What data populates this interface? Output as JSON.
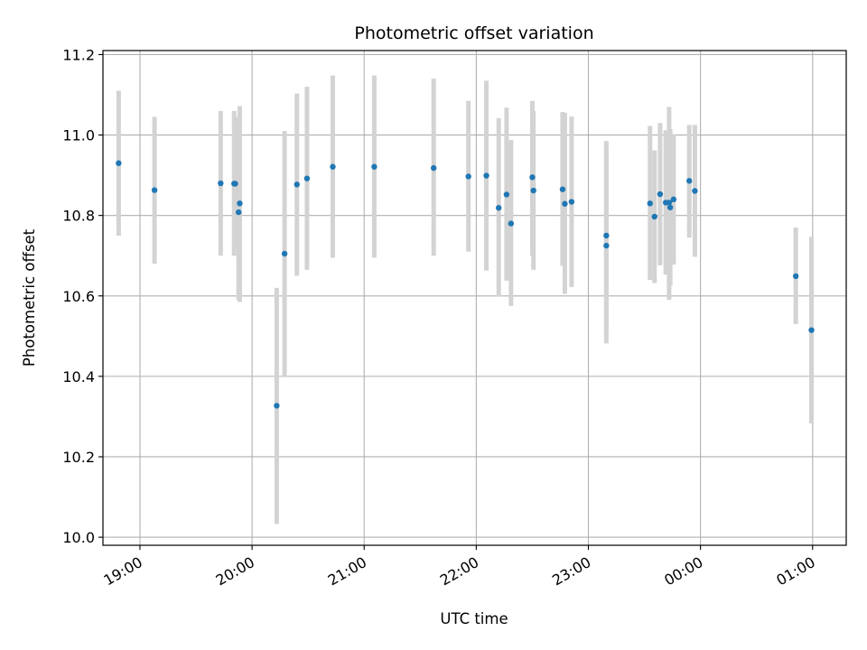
{
  "chart_data": {
    "type": "scatter",
    "title": "Photometric offset variation",
    "xlabel": "UTC time",
    "ylabel": "Photometric offset",
    "x_unit": "hours UTC, continuing past midnight (24.5 = 00:30)",
    "xlim": [
      18.67,
      25.3
    ],
    "ylim": [
      9.98,
      11.21
    ],
    "grid": true,
    "x_ticks": [
      {
        "value": 19,
        "label": "19:00"
      },
      {
        "value": 20,
        "label": "20:00"
      },
      {
        "value": 21,
        "label": "21:00"
      },
      {
        "value": 22,
        "label": "22:00"
      },
      {
        "value": 23,
        "label": "23:00"
      },
      {
        "value": 24,
        "label": "00:00"
      },
      {
        "value": 25,
        "label": "01:00"
      }
    ],
    "y_ticks": [
      {
        "value": 10.0,
        "label": "10.0"
      },
      {
        "value": 10.2,
        "label": "10.2"
      },
      {
        "value": 10.4,
        "label": "10.4"
      },
      {
        "value": 10.6,
        "label": "10.6"
      },
      {
        "value": 10.8,
        "label": "10.8"
      },
      {
        "value": 11.0,
        "label": "11.0"
      },
      {
        "value": 11.2,
        "label": "11.2"
      }
    ],
    "colors": {
      "point": "#1f77b4",
      "errorbar": "#d3d3d3",
      "grid": "#b0b0b0"
    },
    "points": [
      {
        "x": 18.81,
        "y": 10.93,
        "err_low": 10.75,
        "err_high": 11.11
      },
      {
        "x": 19.13,
        "y": 10.863,
        "err_low": 10.68,
        "err_high": 11.045
      },
      {
        "x": 19.72,
        "y": 10.88,
        "err_low": 10.7,
        "err_high": 11.06
      },
      {
        "x": 19.84,
        "y": 10.879,
        "err_low": 10.7,
        "err_high": 11.06
      },
      {
        "x": 19.85,
        "y": 10.879,
        "err_low": 10.72,
        "err_high": 11.045
      },
      {
        "x": 19.88,
        "y": 10.808,
        "err_low": 10.59,
        "err_high": 11.03
      },
      {
        "x": 19.89,
        "y": 10.83,
        "err_low": 10.585,
        "err_high": 11.072
      },
      {
        "x": 20.22,
        "y": 10.327,
        "err_low": 10.033,
        "err_high": 10.62
      },
      {
        "x": 20.29,
        "y": 10.705,
        "err_low": 10.4,
        "err_high": 11.01
      },
      {
        "x": 20.4,
        "y": 10.877,
        "err_low": 10.65,
        "err_high": 11.103
      },
      {
        "x": 20.49,
        "y": 10.892,
        "err_low": 10.665,
        "err_high": 11.12
      },
      {
        "x": 20.72,
        "y": 10.921,
        "err_low": 10.695,
        "err_high": 11.148
      },
      {
        "x": 21.09,
        "y": 10.921,
        "err_low": 10.695,
        "err_high": 11.148
      },
      {
        "x": 21.62,
        "y": 10.918,
        "err_low": 10.7,
        "err_high": 11.14
      },
      {
        "x": 21.93,
        "y": 10.897,
        "err_low": 10.71,
        "err_high": 11.085
      },
      {
        "x": 22.09,
        "y": 10.899,
        "err_low": 10.663,
        "err_high": 11.135
      },
      {
        "x": 22.2,
        "y": 10.819,
        "err_low": 10.598,
        "err_high": 11.042
      },
      {
        "x": 22.27,
        "y": 10.852,
        "err_low": 10.638,
        "err_high": 11.068
      },
      {
        "x": 22.31,
        "y": 10.78,
        "err_low": 10.575,
        "err_high": 10.988
      },
      {
        "x": 22.5,
        "y": 10.895,
        "err_low": 10.7,
        "err_high": 11.085
      },
      {
        "x": 22.51,
        "y": 10.862,
        "err_low": 10.665,
        "err_high": 11.06
      },
      {
        "x": 22.77,
        "y": 10.865,
        "err_low": 10.675,
        "err_high": 11.057
      },
      {
        "x": 22.79,
        "y": 10.829,
        "err_low": 10.605,
        "err_high": 11.055
      },
      {
        "x": 22.85,
        "y": 10.834,
        "err_low": 10.622,
        "err_high": 11.046
      },
      {
        "x": 23.16,
        "y": 10.75,
        "err_low": 10.515,
        "err_high": 10.985
      },
      {
        "x": 23.16,
        "y": 10.725,
        "err_low": 10.482,
        "err_high": 10.968
      },
      {
        "x": 23.55,
        "y": 10.83,
        "err_low": 10.64,
        "err_high": 11.023
      },
      {
        "x": 23.59,
        "y": 10.797,
        "err_low": 10.632,
        "err_high": 10.962
      },
      {
        "x": 23.64,
        "y": 10.853,
        "err_low": 10.676,
        "err_high": 11.03
      },
      {
        "x": 23.69,
        "y": 10.832,
        "err_low": 10.653,
        "err_high": 11.012
      },
      {
        "x": 23.72,
        "y": 10.832,
        "err_low": 10.59,
        "err_high": 11.07
      },
      {
        "x": 23.73,
        "y": 10.82,
        "err_low": 10.625,
        "err_high": 11.015
      },
      {
        "x": 23.76,
        "y": 10.84,
        "err_low": 10.678,
        "err_high": 11.002
      },
      {
        "x": 23.9,
        "y": 10.886,
        "err_low": 10.745,
        "err_high": 11.025
      },
      {
        "x": 23.95,
        "y": 10.861,
        "err_low": 10.697,
        "err_high": 11.025
      },
      {
        "x": 24.85,
        "y": 10.649,
        "err_low": 10.53,
        "err_high": 10.77
      },
      {
        "x": 24.99,
        "y": 10.515,
        "err_low": 10.283,
        "err_high": 10.747
      }
    ]
  }
}
